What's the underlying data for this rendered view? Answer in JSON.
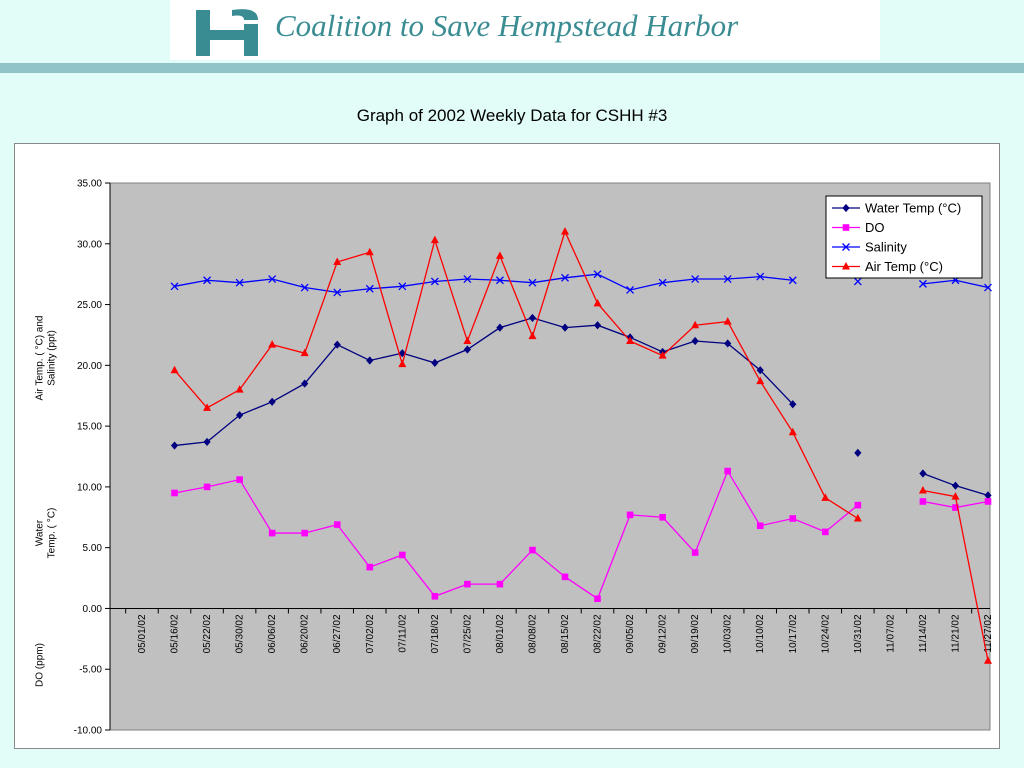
{
  "header": {
    "title": "Coalition to Save Hempstead Harbor"
  },
  "chart_data": {
    "type": "line",
    "title": "Graph of 2002 Weekly Data for CSHH #3",
    "ylabel_lines": [
      [
        "Air Temp. ( °C) and",
        "Salinity (ppt)"
      ],
      [
        "Water",
        "Temp. ( °C)"
      ],
      [
        "DO (ppm)"
      ]
    ],
    "categories": [
      "05/01/02",
      "05/16/02",
      "05/22/02",
      "05/30/02",
      "06/06/02",
      "06/20/02",
      "06/27/02",
      "07/02/02",
      "07/11/02",
      "07/18/02",
      "07/25/02",
      "08/01/02",
      "08/08/02",
      "08/15/02",
      "08/22/02",
      "09/05/02",
      "09/12/02",
      "09/19/02",
      "10/03/02",
      "10/10/02",
      "10/17/02",
      "10/24/02",
      "10/31/02",
      "11/07/02",
      "11/14/02",
      "11/21/02",
      "11/27/02"
    ],
    "ylim": [
      -10,
      35
    ],
    "yticks": [
      {
        "value": -10,
        "label": "-10.00"
      },
      {
        "value": -5,
        "label": "-5.00"
      },
      {
        "value": 0,
        "label": "0.00"
      },
      {
        "value": 5,
        "label": "5.00"
      },
      {
        "value": 10,
        "label": "10.00"
      },
      {
        "value": 15,
        "label": "15.00"
      },
      {
        "value": 20,
        "label": "20.00"
      },
      {
        "value": 25,
        "label": "25.00"
      },
      {
        "value": 30,
        "label": "30.00"
      },
      {
        "value": 35,
        "label": "35.00"
      }
    ],
    "grid": false,
    "legend": "top-right",
    "series": [
      {
        "name": "Water Temp (°C)",
        "color": "#000080",
        "marker": "diamond",
        "values": [
          null,
          13.4,
          13.7,
          15.9,
          17.0,
          18.5,
          21.7,
          20.4,
          21.0,
          20.2,
          21.3,
          23.1,
          23.9,
          23.1,
          23.3,
          22.3,
          21.1,
          22.0,
          21.8,
          19.6,
          16.8,
          null,
          12.8,
          null,
          11.1,
          10.1,
          9.3
        ]
      },
      {
        "name": "DO",
        "color": "#ff00ff",
        "marker": "square",
        "values": [
          null,
          9.5,
          10.0,
          10.6,
          6.2,
          6.2,
          6.9,
          3.4,
          4.4,
          1.0,
          2.0,
          2.0,
          4.8,
          2.6,
          0.8,
          7.7,
          7.5,
          4.6,
          11.3,
          6.8,
          7.4,
          6.3,
          8.5,
          null,
          8.8,
          8.3,
          8.8
        ]
      },
      {
        "name": "Salinity",
        "color": "#0000ff",
        "marker": "x",
        "values": [
          null,
          26.5,
          27.0,
          26.8,
          27.1,
          26.4,
          26.0,
          26.3,
          26.5,
          26.9,
          27.1,
          27.0,
          26.8,
          27.2,
          27.5,
          26.2,
          26.8,
          27.1,
          27.1,
          27.3,
          27.0,
          null,
          26.9,
          null,
          26.7,
          27.0,
          26.4
        ]
      },
      {
        "name": "Air Temp (°C)",
        "color": "#ff0000",
        "marker": "triangle",
        "values": [
          null,
          19.6,
          16.5,
          18.0,
          21.7,
          21.0,
          28.5,
          29.3,
          20.1,
          30.3,
          22.0,
          29.0,
          22.4,
          31.0,
          25.1,
          22.0,
          20.8,
          23.3,
          23.6,
          18.7,
          14.5,
          9.1,
          7.4,
          null,
          9.7,
          9.2,
          -4.3
        ]
      }
    ]
  }
}
